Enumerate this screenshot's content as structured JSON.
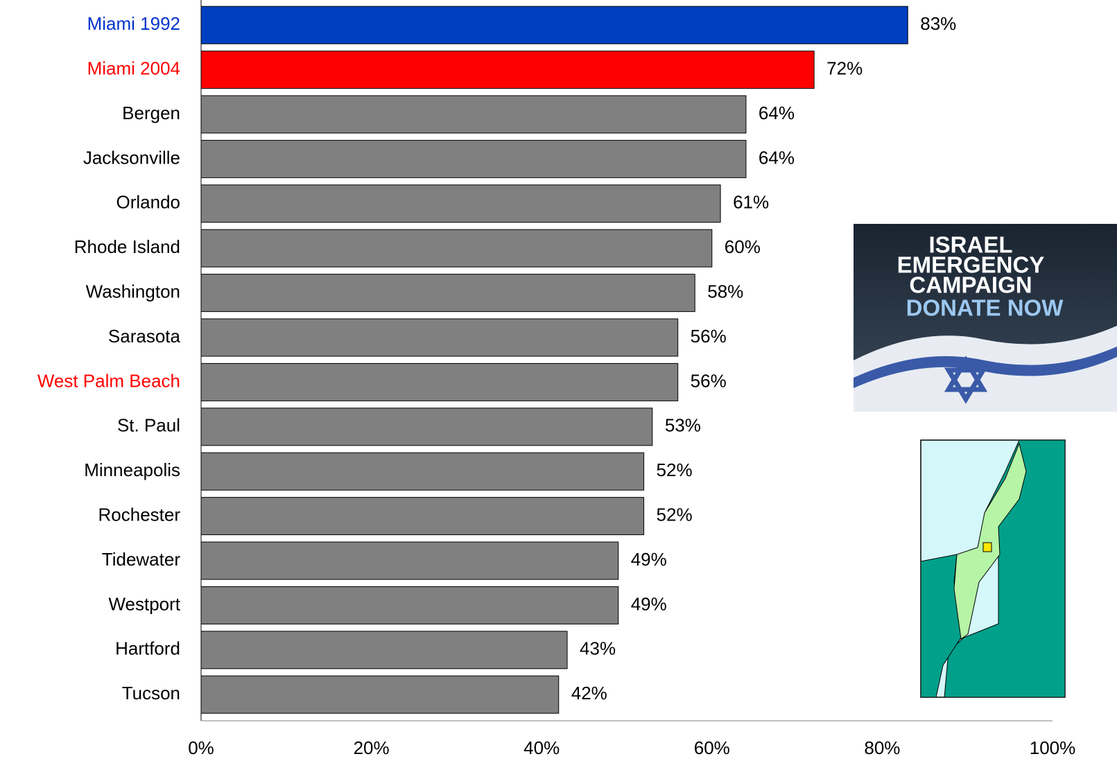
{
  "chart_data": {
    "type": "hbar",
    "categories": [
      "Miami 1992",
      "Miami 2004",
      "Bergen",
      "Jacksonville",
      "Orlando",
      "Rhode Island",
      "Washington",
      "Sarasota",
      "West Palm Beach",
      "St. Paul",
      "Minneapolis",
      "Rochester",
      "Tidewater",
      "Westport",
      "Hartford",
      "Tucson"
    ],
    "category_colors": [
      "#0033cc",
      "#ff0000",
      "#000000",
      "#000000",
      "#000000",
      "#000000",
      "#000000",
      "#000000",
      "#ff0000",
      "#000000",
      "#000000",
      "#000000",
      "#000000",
      "#000000",
      "#000000",
      "#000000"
    ],
    "values": [
      83,
      72,
      64,
      64,
      61,
      60,
      58,
      56,
      56,
      53,
      52,
      52,
      49,
      49,
      43,
      42
    ],
    "value_labels": [
      "83%",
      "72%",
      "64%",
      "64%",
      "61%",
      "60%",
      "58%",
      "56%",
      "56%",
      "53%",
      "52%",
      "52%",
      "49%",
      "49%",
      "43%",
      "42%"
    ],
    "colors": [
      "#0040c0",
      "#ff0000",
      "#808080",
      "#808080",
      "#808080",
      "#808080",
      "#808080",
      "#808080",
      "#808080",
      "#808080",
      "#808080",
      "#808080",
      "#808080",
      "#808080",
      "#808080",
      "#808080"
    ],
    "xlim": [
      0,
      100
    ],
    "xticks": [
      {
        "value": 0,
        "label": "0%"
      },
      {
        "value": 20,
        "label": "20%"
      },
      {
        "value": 40,
        "label": "40%"
      },
      {
        "value": 60,
        "label": "60%"
      },
      {
        "value": 80,
        "label": "80%"
      },
      {
        "value": 100,
        "label": "100%"
      }
    ],
    "grid": false
  },
  "banner": {
    "lines": [
      "ISRAEL",
      "EMERGENCY",
      "CAMPAIGN",
      "DONATE NOW"
    ]
  }
}
